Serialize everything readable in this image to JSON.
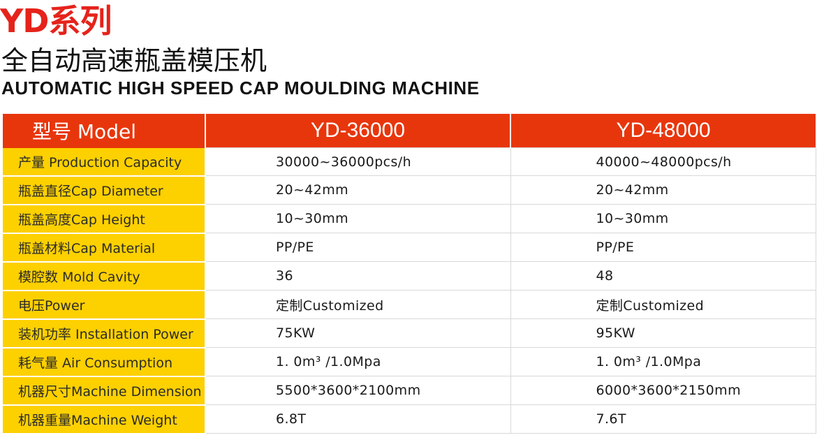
{
  "header": {
    "series": "YD系列",
    "title_cn": "全自动高速瓶盖模压机",
    "title_en": "AUTOMATIC HIGH SPEED CAP MOULDING MACHINE"
  },
  "table": {
    "columns": [
      "型号 Model",
      "YD-36000",
      "YD-48000"
    ],
    "rows": [
      {
        "label": "产量 Production Capacity",
        "a": "30000~36000pcs/h",
        "b": "40000~48000pcs/h"
      },
      {
        "label": "瓶盖直径Cap Diameter",
        "a": "20~42mm",
        "b": "20~42mm"
      },
      {
        "label": "瓶盖高度Cap Height",
        "a": "10~30mm",
        "b": "10~30mm"
      },
      {
        "label": "瓶盖材料Cap Material",
        "a": "PP/PE",
        "b": "PP/PE"
      },
      {
        "label": "模腔数 Mold Cavity",
        "a": "36",
        "b": "48"
      },
      {
        "label": "电压Power",
        "a": "定制Customized",
        "b": "定制Customized"
      },
      {
        "label": "装机功率 Installation Power",
        "a": "75KW",
        "b": "95KW"
      },
      {
        "label": "耗气量 Air Consumption",
        "a": "1. 0m³ /1.0Mpa",
        "b": "1. 0m³ /1.0Mpa"
      },
      {
        "label": "机器尺寸Machine Dimension",
        "a": "5500*3600*2100mm",
        "b": "6000*3600*2150mm"
      },
      {
        "label": "机器重量Machine Weight",
        "a": "6.8T",
        "b": "7.6T"
      }
    ]
  },
  "colors": {
    "accent_red": "#e5231b",
    "header_bar": "#e8360c",
    "label_yellow": "#fdd000"
  }
}
